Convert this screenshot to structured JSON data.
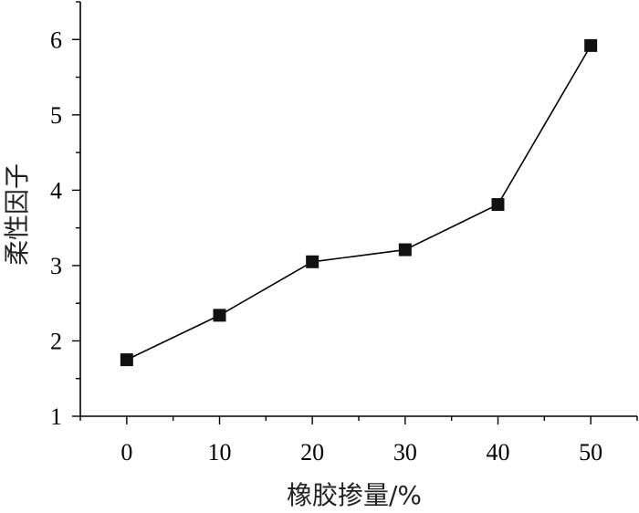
{
  "chart_data": {
    "type": "line",
    "title": "",
    "xlabel": "橡胶掺量/%",
    "ylabel": "柔性因子",
    "x": [
      0,
      10,
      20,
      30,
      40,
      50
    ],
    "series": [
      {
        "values": [
          1.75,
          2.34,
          3.05,
          3.21,
          3.81,
          5.92
        ]
      }
    ],
    "xlim": [
      -5,
      55
    ],
    "ylim": [
      1,
      6.5
    ],
    "xticks": [
      0,
      10,
      20,
      30,
      40,
      50
    ],
    "yticks": [
      1,
      2,
      3,
      4,
      5,
      6
    ],
    "xtick_labels": [
      "0",
      "10",
      "20",
      "30",
      "40",
      "50"
    ],
    "ytick_labels": [
      "1",
      "2",
      "3",
      "4",
      "5",
      "6"
    ],
    "marker": "square",
    "grid": false,
    "legend": "none",
    "colors": {
      "line": "#000000",
      "marker": "#111111"
    }
  }
}
